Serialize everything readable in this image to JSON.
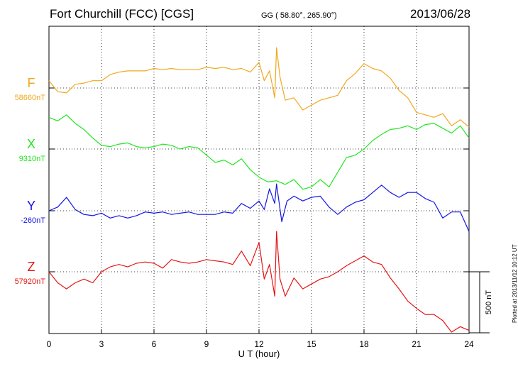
{
  "header": {
    "station": "Fort Churchill (FCC)  [CGS]",
    "coords": "GG ( 58.80°, 265.90°)",
    "date": "2013/06/28"
  },
  "plotted_note": "Plotted at 2013/11/12 10:12 UT",
  "chart_data": {
    "type": "line",
    "title": "Fort Churchill (FCC)  [CGS]",
    "xlabel": "U T (hour)",
    "xlim": [
      0,
      24
    ],
    "xticks": [
      "0",
      "3",
      "6",
      "9",
      "12",
      "15",
      "18",
      "21",
      "24"
    ],
    "grid": true,
    "scale_bar": {
      "label": "500 nT",
      "value_nT": 500
    },
    "series": [
      {
        "name": "F",
        "baseline_label": "58660nT",
        "baseline": 58660,
        "color": "#f0a81e",
        "x": [
          0,
          0.5,
          1,
          1.5,
          2,
          2.5,
          3,
          3.5,
          4,
          4.5,
          5,
          5.5,
          6,
          6.5,
          7,
          7.5,
          8,
          8.5,
          9,
          9.5,
          10,
          10.5,
          11,
          11.5,
          12,
          12.3,
          12.6,
          12.9,
          13,
          13.2,
          13.5,
          14,
          14.5,
          15,
          15.5,
          16,
          16.5,
          17,
          17.5,
          18,
          18.5,
          19,
          19.5,
          20,
          20.5,
          21,
          21.5,
          22,
          22.5,
          23,
          23.5,
          24
        ],
        "values": [
          58720,
          58630,
          58620,
          58690,
          58700,
          58720,
          58720,
          58770,
          58790,
          58800,
          58800,
          58800,
          58820,
          58810,
          58820,
          58810,
          58810,
          58810,
          58830,
          58820,
          58830,
          58810,
          58820,
          58790,
          58870,
          58720,
          58800,
          58580,
          58990,
          58750,
          58560,
          58580,
          58480,
          58520,
          58560,
          58580,
          58600,
          58720,
          58780,
          58860,
          58820,
          58800,
          58740,
          58640,
          58580,
          58460,
          58440,
          58420,
          58450,
          58350,
          58400,
          58340
        ]
      },
      {
        "name": "X",
        "baseline_label": "9310nT",
        "baseline": 9310,
        "color": "#1ee61e",
        "x": [
          0,
          0.5,
          1,
          1.5,
          2,
          2.5,
          3,
          3.5,
          4,
          4.5,
          5,
          5.5,
          6,
          6.5,
          7,
          7.5,
          8,
          8.5,
          9,
          9.5,
          10,
          10.5,
          11,
          11.5,
          12,
          12.5,
          13,
          13.5,
          14,
          14.5,
          15,
          15.5,
          16,
          16.5,
          17,
          17.5,
          18,
          18.5,
          19,
          19.5,
          20,
          20.5,
          21,
          21.5,
          22,
          22.5,
          23,
          23.5,
          24
        ],
        "values": [
          9570,
          9540,
          9590,
          9520,
          9470,
          9400,
          9340,
          9330,
          9350,
          9360,
          9330,
          9320,
          9330,
          9350,
          9340,
          9310,
          9330,
          9320,
          9260,
          9200,
          9220,
          9180,
          9230,
          9140,
          9080,
          9040,
          9050,
          9020,
          9060,
          8980,
          9000,
          9060,
          9000,
          9120,
          9240,
          9260,
          9310,
          9380,
          9430,
          9470,
          9480,
          9500,
          9470,
          9510,
          9520,
          9480,
          9440,
          9500,
          9400
        ]
      },
      {
        "name": "Y",
        "baseline_label": "-260nT",
        "baseline": -260,
        "color": "#1414e6",
        "x": [
          0,
          0.5,
          1,
          1.5,
          2,
          2.5,
          3,
          3.5,
          4,
          4.5,
          5,
          5.5,
          6,
          6.5,
          7,
          7.5,
          8,
          8.5,
          9,
          9.5,
          10,
          10.5,
          11,
          11.5,
          12,
          12.3,
          12.6,
          12.9,
          13,
          13.3,
          13.6,
          14,
          14.5,
          15,
          15.5,
          16,
          16.5,
          17,
          17.5,
          18,
          18.5,
          19,
          19.5,
          20,
          20.5,
          21,
          21.5,
          22,
          22.5,
          23,
          23.5,
          24
        ],
        "values": [
          -260,
          -230,
          -150,
          -250,
          -290,
          -300,
          -280,
          -320,
          -300,
          -320,
          -300,
          -270,
          -280,
          -270,
          -290,
          -280,
          -270,
          -290,
          -290,
          -290,
          -270,
          -280,
          -200,
          -240,
          -180,
          -250,
          -80,
          -200,
          -40,
          -350,
          -180,
          -140,
          -180,
          -150,
          -140,
          -230,
          -290,
          -230,
          -190,
          -170,
          -110,
          -50,
          -110,
          -150,
          -110,
          -110,
          -160,
          -190,
          -320,
          -270,
          -270,
          -430
        ]
      },
      {
        "name": "Z",
        "baseline_label": "57920nT",
        "baseline": 57920,
        "color": "#e61414",
        "x": [
          0,
          0.5,
          1,
          1.5,
          2,
          2.5,
          3,
          3.5,
          4,
          4.5,
          5,
          5.5,
          6,
          6.5,
          7,
          7.5,
          8,
          8.5,
          9,
          9.5,
          10,
          10.5,
          11,
          11.5,
          12,
          12.3,
          12.6,
          12.9,
          13,
          13.2,
          13.5,
          14,
          14.5,
          15,
          15.5,
          16,
          16.5,
          17,
          17.5,
          18,
          18.5,
          19,
          19.5,
          20,
          20.5,
          21,
          21.5,
          22,
          22.5,
          23,
          23.5,
          24
        ],
        "values": [
          57920,
          57830,
          57780,
          57830,
          57860,
          57830,
          57920,
          57960,
          57980,
          57960,
          57990,
          58000,
          57990,
          57950,
          58020,
          58000,
          57990,
          58000,
          58020,
          58010,
          58000,
          57980,
          58090,
          57970,
          58160,
          57860,
          57980,
          57720,
          58250,
          57860,
          57720,
          57870,
          57780,
          57820,
          57860,
          57880,
          57920,
          57970,
          58010,
          58050,
          58000,
          57980,
          57870,
          57780,
          57680,
          57620,
          57570,
          57570,
          57520,
          57370,
          57470,
          57440
        ]
      }
    ]
  }
}
